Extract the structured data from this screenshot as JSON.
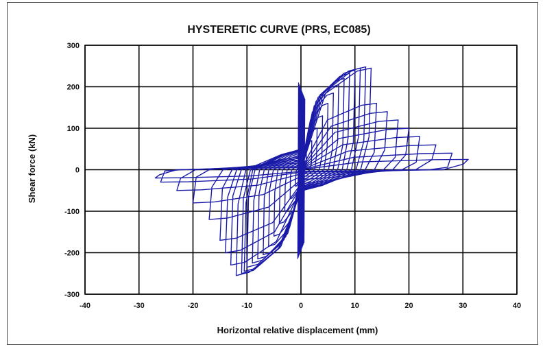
{
  "chart_data": {
    "type": "line",
    "title": "HYSTERETIC CURVE (PRS, EC085)",
    "xlabel": "Horizontal relative displacement (mm)",
    "ylabel": "Shear force (kN)",
    "xlim": [
      -40,
      40
    ],
    "ylim": [
      -300,
      300
    ],
    "xticks": [
      "-40",
      "-30",
      "-20",
      "-10",
      "0",
      "10",
      "20",
      "30",
      "40"
    ],
    "yticks": [
      "300",
      "200",
      "100",
      "0",
      "-100",
      "-200",
      "-300"
    ],
    "grid": true,
    "legend": "none",
    "series_color": "#1a1aa8",
    "series": [
      {
        "cycles": [
          {
            "amp_pos": 1,
            "amp_neg": -1,
            "top": 40,
            "bottom": -40
          },
          {
            "amp_pos": 2,
            "amp_neg": -2,
            "top": 70,
            "bottom": -70
          },
          {
            "amp_pos": 3,
            "amp_neg": -3,
            "top": 100,
            "bottom": -100
          },
          {
            "amp_pos": 4,
            "amp_neg": -4,
            "top": 130,
            "bottom": -130
          },
          {
            "amp_pos": 5,
            "amp_neg": -5,
            "top": 160,
            "bottom": -160
          },
          {
            "amp_pos": 6,
            "amp_neg": -6,
            "top": 185,
            "bottom": -185
          },
          {
            "amp_pos": 7,
            "amp_neg": -7,
            "top": 205,
            "bottom": -205
          },
          {
            "amp_pos": 8,
            "amp_neg": -8,
            "top": 220,
            "bottom": -215
          },
          {
            "amp_pos": 9,
            "amp_neg": -9,
            "top": 232,
            "bottom": -225
          },
          {
            "amp_pos": 10,
            "amp_neg": -10,
            "top": 240,
            "bottom": -235
          },
          {
            "amp_pos": 11,
            "amp_neg": -10.5,
            "top": 245,
            "bottom": -245
          },
          {
            "amp_pos": 12,
            "amp_neg": -11,
            "top": 248,
            "bottom": -250
          },
          {
            "amp_pos": 13,
            "amp_neg": -12,
            "top": 245,
            "bottom": -255
          },
          {
            "amp_pos": 14,
            "amp_neg": -13,
            "top": 160,
            "bottom": -230
          },
          {
            "amp_pos": 16,
            "amp_neg": -14,
            "top": 140,
            "bottom": -200
          },
          {
            "amp_pos": 18,
            "amp_neg": -15,
            "top": 120,
            "bottom": -170
          },
          {
            "amp_pos": 20,
            "amp_neg": -17,
            "top": 100,
            "bottom": -120
          },
          {
            "amp_pos": 22,
            "amp_neg": -20,
            "top": 80,
            "bottom": -80
          },
          {
            "amp_pos": 25,
            "amp_neg": -23,
            "top": 60,
            "bottom": -50
          },
          {
            "amp_pos": 28,
            "amp_neg": -26,
            "top": 40,
            "bottom": -30
          },
          {
            "amp_pos": 31,
            "amp_neg": -27,
            "top": 25,
            "bottom": -20
          }
        ]
      }
    ]
  }
}
